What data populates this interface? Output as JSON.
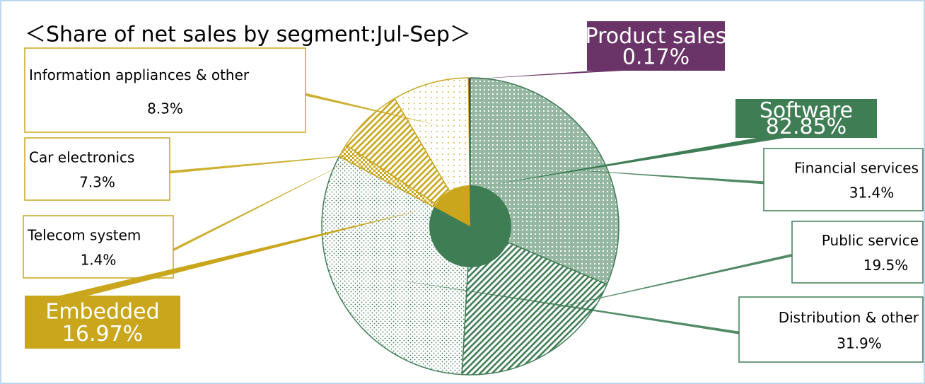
{
  "chart_data": {
    "type": "pie",
    "title": "＜Share of net sales by segment:Jul-Sep＞",
    "inner": {
      "categories": [
        "Software",
        "Embedded",
        "Product sales"
      ],
      "values": [
        82.85,
        16.97,
        0.17
      ],
      "value_labels": [
        "82.85%",
        "16.97%",
        "0.17%"
      ],
      "colors": [
        "#3f7d55",
        "#c9a61b",
        "#6b3468"
      ]
    },
    "outer": {
      "categories": [
        "Financial services",
        "Public service",
        "Distribution & other",
        "Telecom system",
        "Car electronics",
        "Information appliances & other"
      ],
      "values": [
        31.4,
        19.5,
        31.9,
        1.4,
        7.3,
        8.3
      ],
      "value_labels": [
        "31.4%",
        "19.5%",
        "31.9%",
        "1.4%",
        "7.3%",
        "8.3%"
      ],
      "colors": [
        "#3f7d55",
        "#3f7d55",
        "#3f7d55",
        "#c9a61b",
        "#c9a61b",
        "#c9a61b"
      ]
    }
  }
}
